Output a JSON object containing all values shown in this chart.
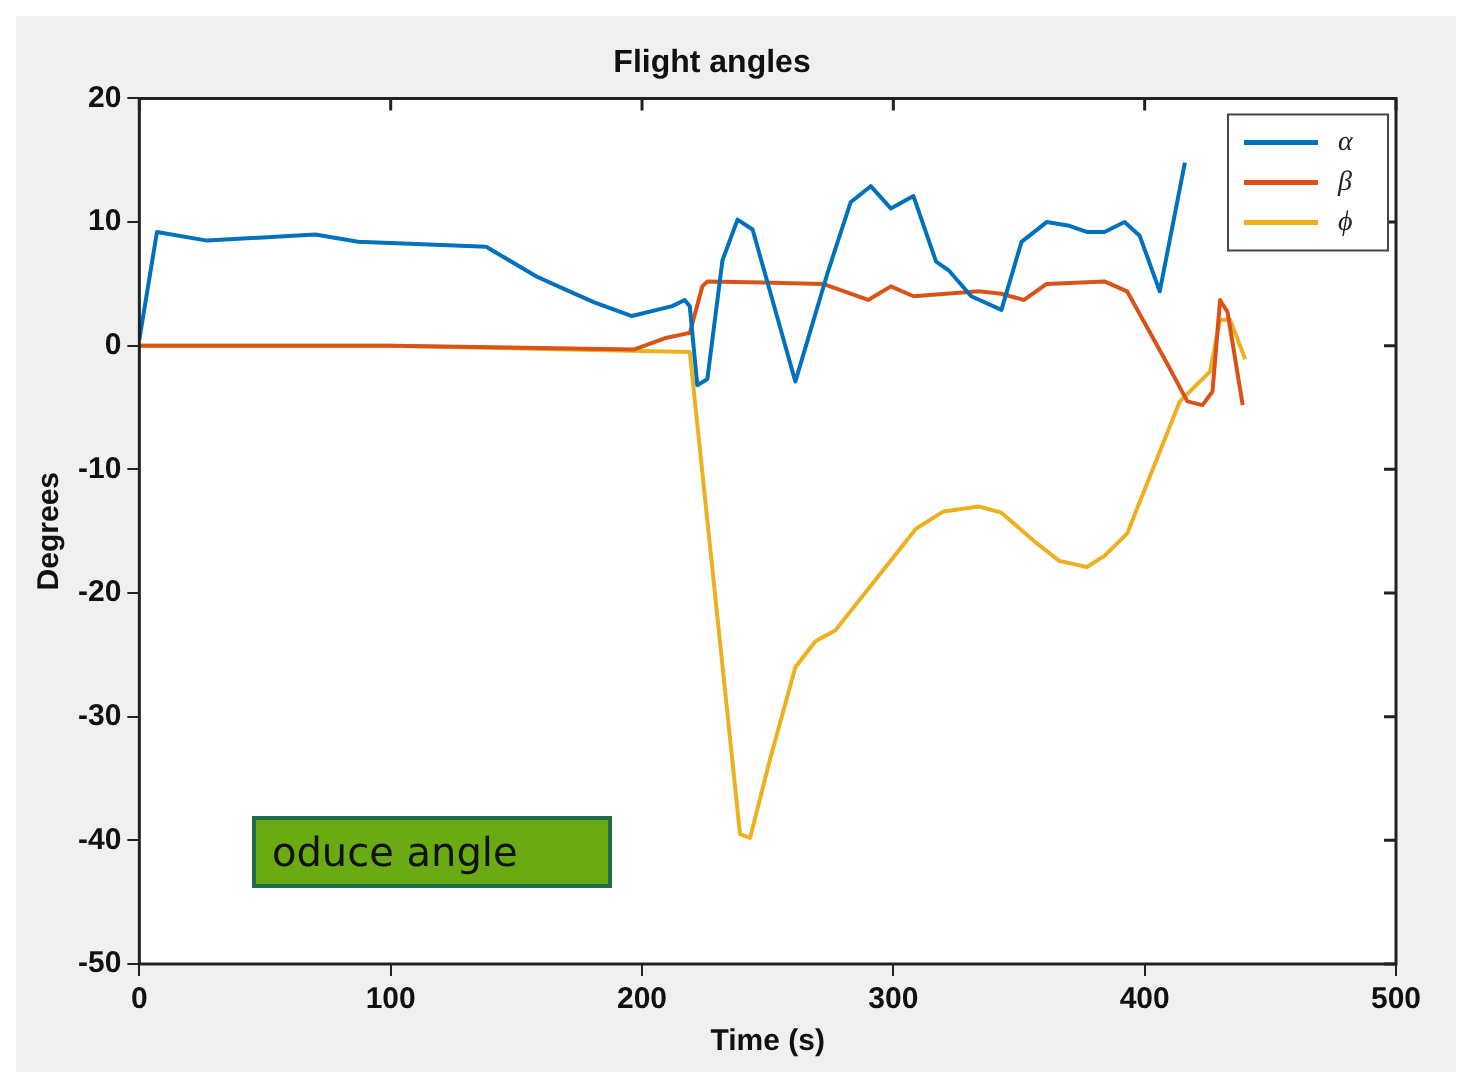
{
  "chart_data": {
    "type": "line",
    "title": "Flight angles",
    "xlabel": "Time (s)",
    "ylabel": "Degrees",
    "xlim": [
      0,
      500
    ],
    "xticks": [
      0,
      100,
      200,
      300,
      400,
      500
    ],
    "ylim": [
      -50,
      20
    ],
    "yticks": [
      -50,
      -40,
      -30,
      -20,
      -10,
      0,
      10,
      20
    ],
    "grid": false,
    "legend": "top right",
    "marker": "none",
    "line_style": "solid",
    "annotations": [
      "oduce angle"
    ],
    "series": [
      {
        "name": "α",
        "color": "#0072bd",
        "x": [
          0,
          7,
          27,
          70,
          87,
          138,
          158,
          170,
          181,
          196,
          212,
          217,
          219,
          222,
          226,
          232,
          238,
          244,
          261,
          274,
          283,
          291,
          299,
          308,
          317,
          322,
          331,
          343,
          351,
          361,
          370,
          377,
          384,
          392,
          398,
          406,
          416
        ],
        "values": [
          0.5,
          9.2,
          8.5,
          9,
          8.4,
          8,
          5.6,
          4.5,
          3.5,
          2.4,
          3.2,
          3.7,
          3.2,
          -3.2,
          -2.7,
          6.9,
          10.2,
          9.4,
          -2.9,
          6,
          11.6,
          12.9,
          11.1,
          12.1,
          6.8,
          6.1,
          4,
          2.9,
          8.4,
          10,
          9.7,
          9.2,
          9.2,
          10,
          8.9,
          4.4,
          14.8
        ]
      },
      {
        "name": "β",
        "color": "#d95319",
        "x": [
          0,
          100,
          197,
          209,
          218,
          219,
          224,
          226,
          272,
          290,
          299,
          308,
          334,
          343,
          352,
          361,
          384,
          393,
          408,
          417,
          423,
          427,
          430,
          433,
          439
        ],
        "values": [
          0,
          0,
          -0.3,
          0.6,
          1,
          1,
          4.8,
          5.2,
          5,
          3.7,
          4.8,
          4,
          4.4,
          4.2,
          3.7,
          5,
          5.2,
          4.4,
          -1.1,
          -4.5,
          -4.8,
          -3.7,
          3.7,
          2.7,
          -4.8
        ]
      },
      {
        "name": "ϕ",
        "color": "#edb120",
        "x": [
          0,
          100,
          219,
          239,
          243,
          251,
          261,
          269,
          277,
          293,
          309,
          320,
          334,
          343,
          356,
          366,
          377,
          384,
          393,
          414,
          426,
          430,
          434,
          440
        ],
        "values": [
          0,
          0,
          -0.5,
          -39.5,
          -39.8,
          -33.4,
          -26,
          -23.9,
          -23,
          -18.9,
          -14.8,
          -13.4,
          -13,
          -13.5,
          -15.8,
          -17.4,
          -17.9,
          -17,
          -15.2,
          -4.5,
          -2.1,
          2.1,
          2.1,
          -1.1
        ]
      }
    ]
  }
}
